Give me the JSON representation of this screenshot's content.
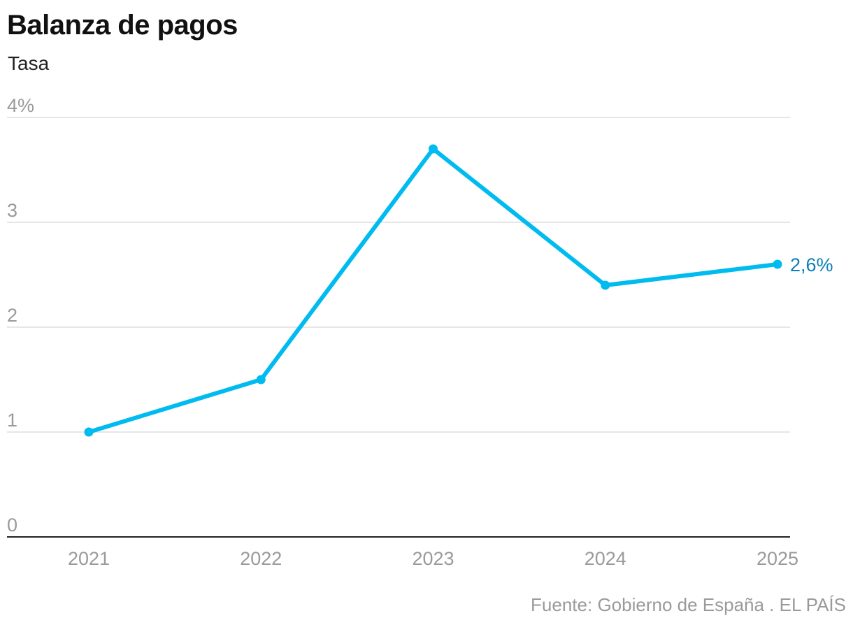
{
  "chart_data": {
    "type": "line",
    "title": "Balanza de pagos",
    "subtitle": "Tasa",
    "x": [
      "2021",
      "2022",
      "2023",
      "2024",
      "2025"
    ],
    "series": [
      {
        "name": "",
        "values": [
          1.0,
          1.5,
          3.7,
          2.4,
          2.6
        ],
        "color": "#00bbf0"
      }
    ],
    "y_ticks": [
      {
        "value": 0,
        "label": "0"
      },
      {
        "value": 1,
        "label": "1"
      },
      {
        "value": 2,
        "label": "2"
      },
      {
        "value": 3,
        "label": "3"
      },
      {
        "value": 4,
        "label": "4%"
      }
    ],
    "ylim": [
      0,
      4
    ],
    "grid": true,
    "end_label": "2,6%",
    "end_label_color": "#0a7fb8",
    "source": "Fuente: Gobierno de España . EL PAÍS"
  }
}
